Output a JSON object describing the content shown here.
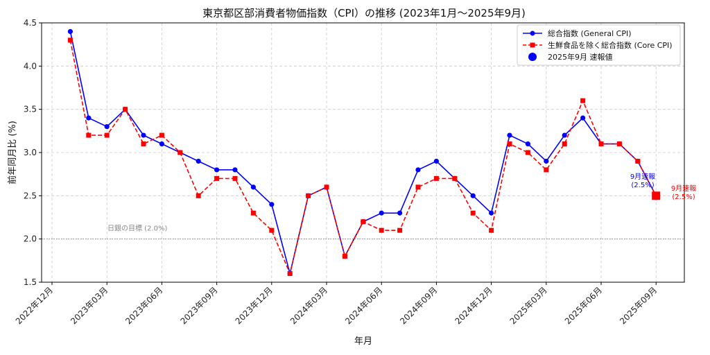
{
  "chart_data": {
    "type": "line",
    "title": "東京都区部消費者物価指数（CPI）の推移 (2023年1月〜2025年9月)",
    "xlabel": "年月",
    "ylabel": "前年同月比 (%)",
    "ylim": [
      1.5,
      4.5
    ],
    "yticks": [
      "1.5",
      "2.0",
      "2.5",
      "3.0",
      "3.5",
      "4.0",
      "4.5"
    ],
    "x_tick_labels": [
      "2022年12月",
      "2023年03月",
      "2023年06月",
      "2023年09月",
      "2023年12月",
      "2024年03月",
      "2024年06月",
      "2024年09月",
      "2024年12月",
      "2025年03月",
      "2025年06月",
      "2025年09月"
    ],
    "grid": true,
    "legend_position": "top-right",
    "categories": [
      "2023-01",
      "2023-02",
      "2023-03",
      "2023-04",
      "2023-05",
      "2023-06",
      "2023-07",
      "2023-08",
      "2023-09",
      "2023-10",
      "2023-11",
      "2023-12",
      "2024-01",
      "2024-02",
      "2024-03",
      "2024-04",
      "2024-05",
      "2024-06",
      "2024-07",
      "2024-08",
      "2024-09",
      "2024-10",
      "2024-11",
      "2024-12",
      "2025-01",
      "2025-02",
      "2025-03",
      "2025-04",
      "2025-05",
      "2025-06",
      "2025-07",
      "2025-08"
    ],
    "series": [
      {
        "name": "総合指数 (General CPI)",
        "color": "#0000ff",
        "style": "solid",
        "marker": "circle",
        "values": [
          4.4,
          3.4,
          3.3,
          3.5,
          3.2,
          3.1,
          3.0,
          2.9,
          2.8,
          2.8,
          2.6,
          2.4,
          1.6,
          2.5,
          2.6,
          1.8,
          2.2,
          2.3,
          2.3,
          2.8,
          2.9,
          2.7,
          2.5,
          2.3,
          3.2,
          3.1,
          2.9,
          3.2,
          3.4,
          3.1,
          3.1,
          2.9
        ]
      },
      {
        "name": "生鮮食品を除く総合指数 (Core CPI)",
        "color": "#ff0000",
        "style": "dashed",
        "marker": "square",
        "values": [
          4.3,
          3.2,
          3.2,
          3.5,
          3.1,
          3.2,
          3.0,
          2.5,
          2.7,
          2.7,
          2.3,
          2.1,
          1.6,
          2.5,
          2.6,
          1.8,
          2.2,
          2.1,
          2.1,
          2.6,
          2.7,
          2.7,
          2.3,
          2.1,
          3.1,
          3.0,
          2.8,
          3.1,
          3.6,
          3.1,
          3.1,
          2.9
        ]
      }
    ],
    "preliminary": {
      "legend_label": "2025年9月 速報値",
      "month": "2025-09",
      "general_value": 2.5,
      "core_value": 2.5,
      "general_label": "9月速報\n(2.5%)",
      "core_label": "9月速報\n(2.5%)"
    },
    "reference_line": {
      "value": 2.0,
      "label": "日銀の目標 (2.0%)",
      "color": "#888888"
    }
  }
}
